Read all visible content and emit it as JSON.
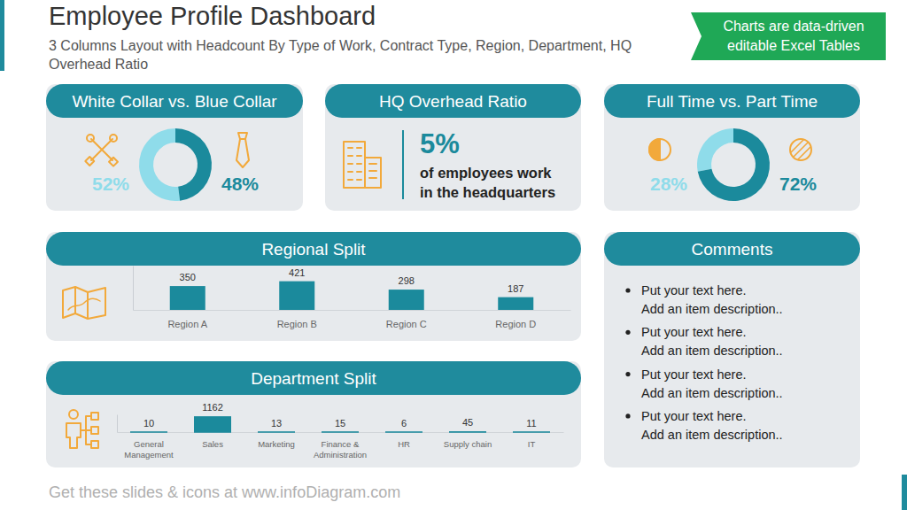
{
  "page": {
    "title": "Employee Profile Dashboard",
    "subtitle": "3 Columns Layout with Headcount By Type of Work, Contract Type, Region, Department, HQ Overhead Ratio",
    "badge": "Charts are data-driven editable Excel Tables",
    "footer": "Get these slides & icons at www.infoDiagram.com"
  },
  "chart_data": [
    {
      "type": "donut",
      "title": "White Collar vs. Blue Collar",
      "values": [
        52,
        48
      ],
      "value_labels": [
        "52%",
        "48%"
      ],
      "colors": [
        "#8fdcea",
        "#1b8a9c"
      ],
      "data_labels": true
    },
    {
      "type": "kpi",
      "title": "HQ Overhead Ratio",
      "values": [
        5
      ],
      "value_labels": [
        "5%"
      ],
      "annotations": [
        "of employees work",
        "in the headquarters"
      ],
      "color": "#1b8a9c"
    },
    {
      "type": "donut",
      "title": "Full Time vs. Part Time",
      "values": [
        28,
        72
      ],
      "value_labels": [
        "28%",
        "72%"
      ],
      "colors": [
        "#8fdcea",
        "#1b8a9c"
      ],
      "data_labels": true
    },
    {
      "type": "bar",
      "title": "Regional Split",
      "categories": [
        "Region A",
        "Region B",
        "Region C",
        "Region D"
      ],
      "values": [
        350,
        421,
        298,
        187
      ],
      "color": "#1b8a9c",
      "ylim": [
        0,
        650
      ],
      "data_labels": true,
      "tick_labels": "x"
    },
    {
      "type": "bar",
      "title": "Department Split",
      "categories": [
        "General Management",
        "Sales",
        "Marketing",
        "Finance & Administration",
        "HR",
        "Supply chain",
        "IT"
      ],
      "values": [
        10,
        1162,
        13,
        15,
        6,
        45,
        11
      ],
      "color": "#1b8a9c",
      "ylim": [
        0,
        1300
      ],
      "data_labels": true,
      "tick_labels": "x"
    }
  ],
  "comments": {
    "title": "Comments",
    "items": [
      {
        "text": "Put your text here.",
        "description": "Add an item description.."
      },
      {
        "text": "Put your text here.",
        "description": "Add an item description.."
      },
      {
        "text": "Put your text here.",
        "description": "Add an item description.."
      },
      {
        "text": "Put your text here.",
        "description": "Add an item description.."
      }
    ]
  }
}
